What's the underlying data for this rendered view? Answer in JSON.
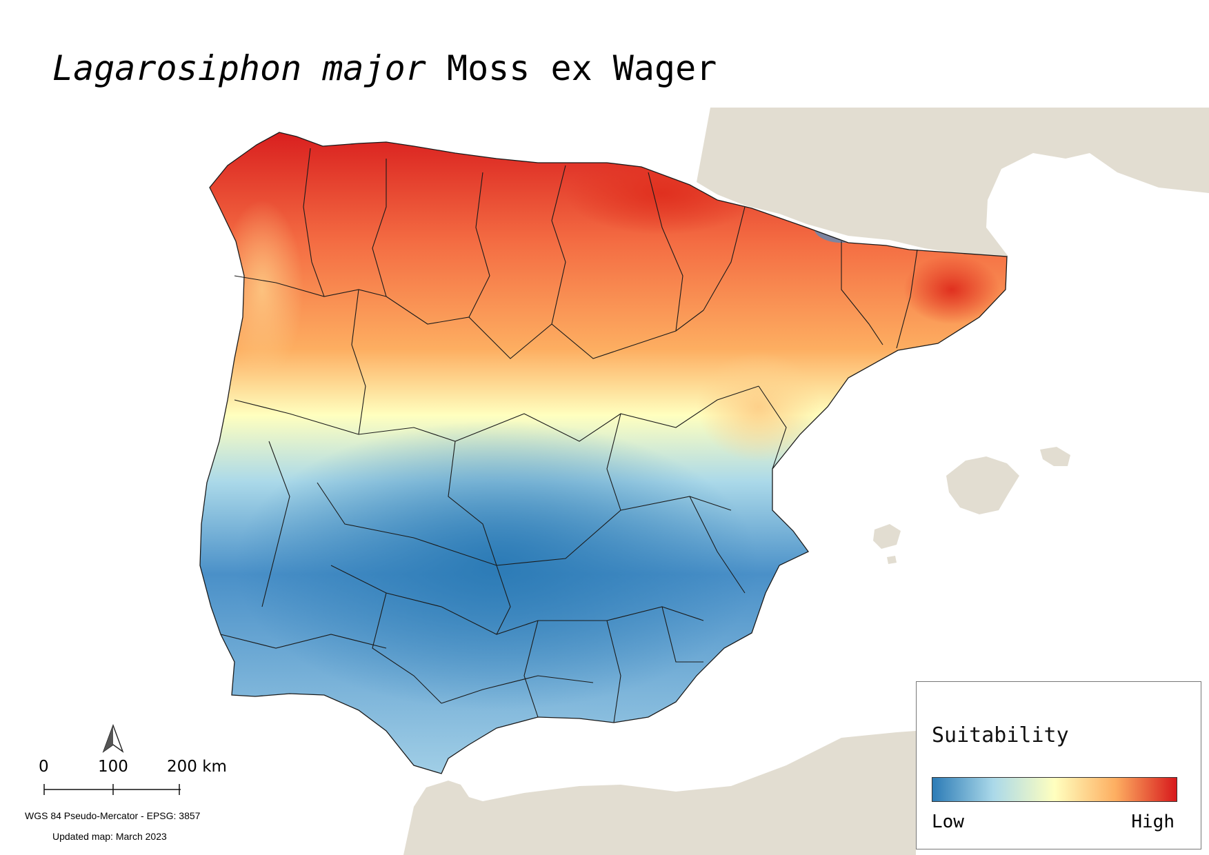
{
  "title": {
    "species": "Lagarosiphon major",
    "author": "Moss ex Wager"
  },
  "legend": {
    "title": "Suitability",
    "low": "Low",
    "high": "High",
    "colors": [
      "#2c7bb6",
      "#abd9e9",
      "#ffffbf",
      "#fdae61",
      "#d7191c"
    ]
  },
  "scale_bar": {
    "labels": [
      "0",
      "100",
      "200 km"
    ]
  },
  "north_arrow": {
    "icon": "north-arrow-icon"
  },
  "projection": "WGS 84 Pseudo-Mercator  - EPSG: 3857",
  "updated": "Updated map: March 2023",
  "map_colors": {
    "land": "#e2ddd1",
    "sea": "#ffffff",
    "borders": "#1a1a1a"
  }
}
